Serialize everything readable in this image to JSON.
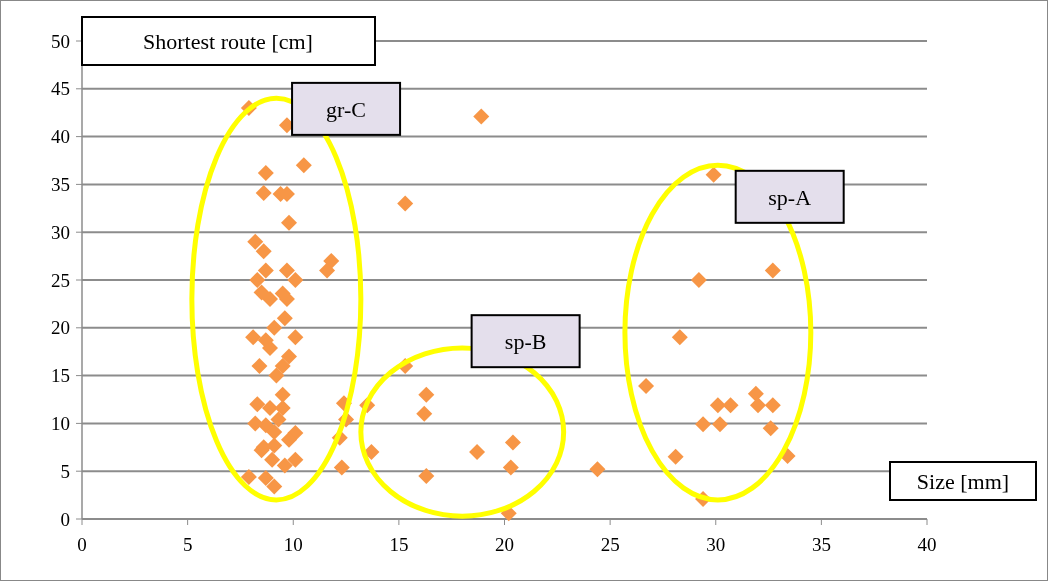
{
  "chart_data": {
    "type": "scatter",
    "xlabel": "Size [mm]",
    "ylabel": "Shortest route [cm]",
    "xlim": [
      0,
      40
    ],
    "xticks": [
      0,
      5,
      10,
      15,
      20,
      25,
      30,
      35,
      40
    ],
    "ylim": [
      0,
      50
    ],
    "yticks": [
      0,
      5,
      10,
      15,
      20,
      25,
      30,
      35,
      40,
      45,
      50
    ],
    "grid": "y",
    "marker": "diamond",
    "annotations": [
      "gr-C",
      "sp-B",
      "sp-A"
    ],
    "series": [
      {
        "color": "#f79646",
        "x": [
          7.9,
          9.7,
          10.5,
          8.7,
          8.6,
          9.4,
          9.7,
          9.8,
          8.2,
          8.6,
          8.7,
          9.7,
          10.1,
          8.3,
          8.5,
          8.9,
          9.5,
          9.7,
          9.6,
          9.1,
          8.1,
          8.7,
          8.9,
          10.1,
          9.8,
          9.5,
          8.4,
          9.2,
          9.5,
          8.3,
          8.9,
          9.5,
          8.7,
          9.3,
          8.2,
          10.1,
          9.8,
          9.1,
          8.5,
          9.0,
          9.6,
          10.1,
          7.9,
          8.7,
          9.1,
          9.1,
          8.6,
          18.9,
          15.3,
          11.8,
          11.6,
          12.4,
          12.5,
          12.2,
          12.3,
          13.5,
          13.7,
          15.3,
          16.3,
          16.2,
          16.3,
          18.7,
          20.4,
          20.3,
          20.2,
          24.4,
          29.9,
          32.7,
          29.2,
          28.3,
          26.7,
          30.1,
          30.7,
          31.9,
          32.0,
          32.7,
          29.4,
          30.2,
          32.6,
          28.1,
          33.4,
          29.4
        ],
        "values": [
          43,
          41.2,
          37,
          36.2,
          34.1,
          34,
          34,
          31,
          29,
          28,
          26,
          26,
          25,
          25,
          23.7,
          23,
          23.6,
          23,
          21,
          20,
          19,
          18.7,
          17.9,
          19,
          17,
          16,
          16,
          15,
          13,
          12,
          11.6,
          11.6,
          9.8,
          10.4,
          10,
          9,
          8.3,
          7.7,
          7.2,
          6.2,
          5.6,
          6.2,
          4.4,
          4.3,
          3.4,
          9.1,
          7.5,
          42.1,
          33,
          27,
          26,
          12.1,
          10.4,
          8.5,
          5.4,
          11.9,
          7,
          16,
          13,
          11,
          4.5,
          7,
          8,
          5.4,
          0.6,
          5.2,
          36,
          26,
          25,
          19,
          13.9,
          11.9,
          11.9,
          13.1,
          11.9,
          11.9,
          9.9,
          9.9,
          9.5,
          6.5,
          6.6,
          2.1
        ]
      }
    ]
  }
}
